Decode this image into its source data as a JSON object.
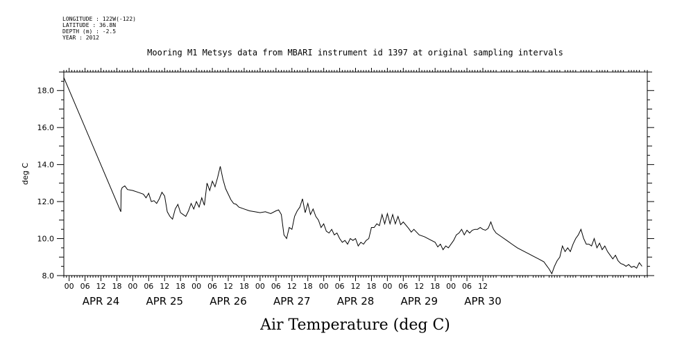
{
  "header": {
    "longitude": "LONGITUDE : 122W(-122)",
    "latitude": "LATITUDE : 36.8N",
    "depth": "DEPTH (m) : -2.5",
    "year": "YEAR : 2012"
  },
  "chart_data": {
    "type": "line",
    "title": "Mooring M1 Metsys data from MBARI instrument id 1397 at original sampling intervals",
    "xlabel": "Air Temperature (deg C)",
    "ylabel": "deg C",
    "ylim": [
      8.0,
      19.0
    ],
    "y_ticks": [
      "8.0",
      "10.0",
      "12.0",
      "14.0",
      "16.0",
      "18.0"
    ],
    "x_hour_ticks": [
      "00",
      "06",
      "12",
      "18",
      "00",
      "06",
      "12",
      "18",
      "00",
      "06",
      "12",
      "18",
      "00",
      "06",
      "12",
      "18",
      "00",
      "06",
      "12",
      "18",
      "00",
      "06",
      "12",
      "18",
      "00",
      "06",
      "12"
    ],
    "x_day_labels": [
      "APR 24",
      "APR 25",
      "APR 26",
      "APR 27",
      "APR 28",
      "APR 29",
      "APR 30"
    ],
    "x_units": "hours since 2012-04-23 22:00",
    "series": [
      {
        "values": [
          [
            0,
            18.7
          ],
          [
            21.5,
            11.45
          ],
          [
            21.6,
            12.6
          ],
          [
            22,
            12.75
          ],
          [
            23,
            12.85
          ],
          [
            24,
            12.65
          ],
          [
            26,
            12.6
          ],
          [
            28,
            12.5
          ],
          [
            30,
            12.4
          ],
          [
            31,
            12.2
          ],
          [
            32,
            12.45
          ],
          [
            33,
            12.0
          ],
          [
            34,
            12.05
          ],
          [
            35,
            11.9
          ],
          [
            36,
            12.15
          ],
          [
            37,
            12.5
          ],
          [
            38,
            12.3
          ],
          [
            39,
            11.45
          ],
          [
            40,
            11.2
          ],
          [
            41,
            11.05
          ],
          [
            42,
            11.6
          ],
          [
            43,
            11.85
          ],
          [
            44,
            11.4
          ],
          [
            45,
            11.3
          ],
          [
            46,
            11.2
          ],
          [
            47,
            11.5
          ],
          [
            48,
            11.9
          ],
          [
            49,
            11.6
          ],
          [
            50,
            12.0
          ],
          [
            51,
            11.7
          ],
          [
            52,
            12.2
          ],
          [
            53,
            11.8
          ],
          [
            54,
            13.0
          ],
          [
            55,
            12.6
          ],
          [
            56,
            13.1
          ],
          [
            57,
            12.8
          ],
          [
            58,
            13.3
          ],
          [
            59,
            13.9
          ],
          [
            60,
            13.2
          ],
          [
            61,
            12.7
          ],
          [
            62,
            12.4
          ],
          [
            63,
            12.1
          ],
          [
            64,
            11.9
          ],
          [
            65,
            11.85
          ],
          [
            66,
            11.7
          ],
          [
            68,
            11.6
          ],
          [
            70,
            11.5
          ],
          [
            72,
            11.45
          ],
          [
            74,
            11.4
          ],
          [
            76,
            11.45
          ],
          [
            78,
            11.35
          ],
          [
            80,
            11.5
          ],
          [
            81,
            11.55
          ],
          [
            82,
            11.3
          ],
          [
            83,
            10.2
          ],
          [
            84,
            10.0
          ],
          [
            85,
            10.6
          ],
          [
            86,
            10.5
          ],
          [
            87,
            11.2
          ],
          [
            88,
            11.5
          ],
          [
            89,
            11.7
          ],
          [
            90,
            12.15
          ],
          [
            91,
            11.4
          ],
          [
            92,
            11.9
          ],
          [
            93,
            11.3
          ],
          [
            94,
            11.6
          ],
          [
            95,
            11.2
          ],
          [
            96,
            11.0
          ],
          [
            97,
            10.6
          ],
          [
            98,
            10.8
          ],
          [
            99,
            10.4
          ],
          [
            100,
            10.3
          ],
          [
            101,
            10.5
          ],
          [
            102,
            10.2
          ],
          [
            103,
            10.3
          ],
          [
            104,
            10.0
          ],
          [
            105,
            9.8
          ],
          [
            106,
            9.9
          ],
          [
            107,
            9.7
          ],
          [
            108,
            10.0
          ],
          [
            109,
            9.9
          ],
          [
            110,
            10.0
          ],
          [
            111,
            9.6
          ],
          [
            112,
            9.8
          ],
          [
            113,
            9.7
          ],
          [
            114,
            9.9
          ],
          [
            115,
            10.0
          ],
          [
            116,
            10.6
          ],
          [
            117,
            10.6
          ],
          [
            118,
            10.8
          ],
          [
            119,
            10.7
          ],
          [
            120,
            11.3
          ],
          [
            121,
            10.8
          ],
          [
            122,
            11.35
          ],
          [
            123,
            10.8
          ],
          [
            124,
            11.3
          ],
          [
            125,
            10.8
          ],
          [
            126,
            11.2
          ],
          [
            127,
            10.75
          ],
          [
            128,
            10.9
          ],
          [
            130,
            10.55
          ],
          [
            131,
            10.35
          ],
          [
            132,
            10.5
          ],
          [
            134,
            10.2
          ],
          [
            136,
            10.1
          ],
          [
            138,
            9.95
          ],
          [
            140,
            9.8
          ],
          [
            141,
            9.55
          ],
          [
            142,
            9.7
          ],
          [
            143,
            9.4
          ],
          [
            144,
            9.6
          ],
          [
            145,
            9.5
          ],
          [
            146,
            9.7
          ],
          [
            147,
            9.9
          ],
          [
            148,
            10.2
          ],
          [
            149,
            10.3
          ],
          [
            150,
            10.5
          ],
          [
            151,
            10.2
          ],
          [
            152,
            10.45
          ],
          [
            153,
            10.3
          ],
          [
            154,
            10.45
          ],
          [
            155,
            10.5
          ],
          [
            156,
            10.5
          ],
          [
            157,
            10.6
          ],
          [
            158,
            10.5
          ],
          [
            159,
            10.45
          ],
          [
            160,
            10.55
          ],
          [
            161,
            10.9
          ],
          [
            162,
            10.5
          ],
          [
            163,
            10.3
          ],
          [
            165,
            10.1
          ],
          [
            167,
            9.9
          ],
          [
            169,
            9.7
          ],
          [
            171,
            9.5
          ],
          [
            173,
            9.35
          ],
          [
            175,
            9.2
          ],
          [
            177,
            9.05
          ],
          [
            179,
            8.9
          ],
          [
            181,
            8.75
          ],
          [
            182,
            8.55
          ],
          [
            183,
            8.35
          ],
          [
            184,
            8.1
          ],
          [
            185,
            8.5
          ],
          [
            186,
            8.8
          ],
          [
            187,
            9.0
          ],
          [
            188,
            9.6
          ],
          [
            189,
            9.3
          ],
          [
            190,
            9.5
          ],
          [
            191,
            9.3
          ],
          [
            192,
            9.7
          ],
          [
            193,
            10.0
          ],
          [
            194,
            10.2
          ],
          [
            195,
            10.5
          ],
          [
            196,
            10.0
          ],
          [
            197,
            9.7
          ],
          [
            198,
            9.7
          ],
          [
            199,
            9.6
          ],
          [
            200,
            10.0
          ],
          [
            201,
            9.5
          ],
          [
            202,
            9.75
          ],
          [
            203,
            9.4
          ],
          [
            204,
            9.6
          ],
          [
            205,
            9.3
          ],
          [
            206,
            9.1
          ],
          [
            207,
            8.9
          ],
          [
            208,
            9.1
          ],
          [
            209,
            8.8
          ],
          [
            210,
            8.65
          ],
          [
            211,
            8.6
          ],
          [
            212,
            8.5
          ],
          [
            213,
            8.6
          ],
          [
            214,
            8.45
          ],
          [
            215,
            8.5
          ],
          [
            216,
            8.4
          ],
          [
            217,
            8.7
          ],
          [
            218,
            8.5
          ]
        ]
      }
    ]
  }
}
